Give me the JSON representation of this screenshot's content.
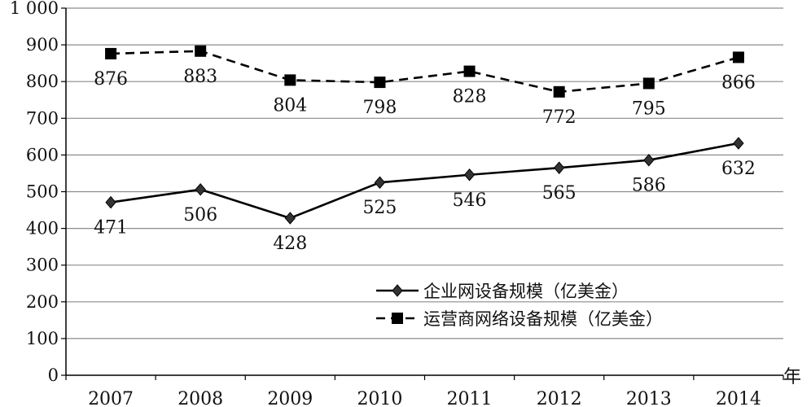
{
  "chart_data": {
    "type": "line",
    "categories": [
      "2007",
      "2008",
      "2009",
      "2010",
      "2011",
      "2012",
      "2013",
      "2014"
    ],
    "ylim": [
      0,
      1000
    ],
    "yticks": [
      0,
      100,
      200,
      300,
      400,
      500,
      600,
      700,
      800,
      900,
      1000
    ],
    "ytick_labels": [
      "0",
      "100",
      "200",
      "300",
      "400",
      "500",
      "600",
      "700",
      "800",
      "900",
      "1 000"
    ],
    "x_unit": "年",
    "grid": "horizontal",
    "legend_position": "bottom-right",
    "series": [
      {
        "name": "企业网设备规模（亿美金）",
        "values": [
          471,
          506,
          428,
          525,
          546,
          565,
          586,
          632
        ],
        "marker": "diamond",
        "line_style": "solid",
        "color": "#000000"
      },
      {
        "name": "运营商网络设备规模（亿美金）",
        "values": [
          876,
          883,
          804,
          798,
          828,
          772,
          795,
          866
        ],
        "marker": "square",
        "line_style": "dashed",
        "color": "#000000"
      }
    ]
  }
}
